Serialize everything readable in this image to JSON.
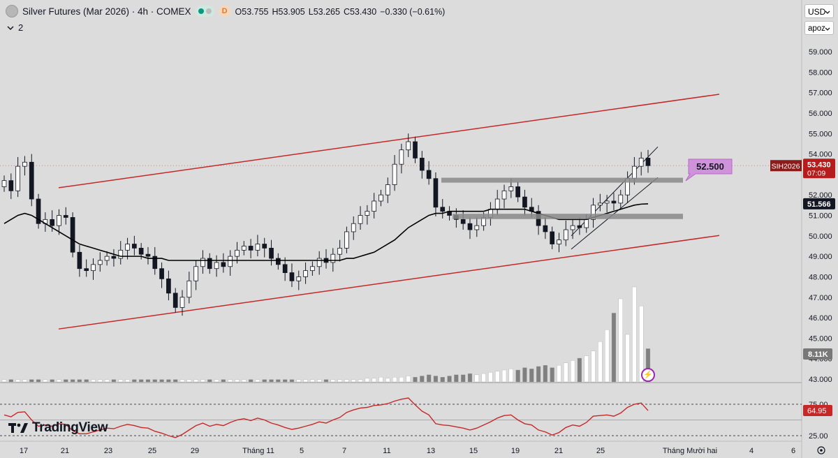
{
  "header": {
    "title": "Silver Futures (Mar 2026) · 4h · COMEX",
    "open": "O53.755",
    "high": "H53.905",
    "low": "L53.265",
    "close": "C53.430",
    "change": "−0.330 (−0.61%)",
    "delayed_badge": "D",
    "indicators_count": "2"
  },
  "toolbar": {
    "currency": "USD",
    "unit": "apoz"
  },
  "brand": {
    "logo_text": "TradingView"
  },
  "colors": {
    "up_candle": "#ffffff",
    "down_candle": "#131722",
    "channel": "#c62828",
    "ma": "#000000",
    "rsi": "#c62828",
    "zone": "#8a8a8a",
    "callout": "#ce93d8"
  },
  "chart_data": [
    {
      "type": "candlestick",
      "symbol_label": "SIH2026",
      "last_price_label": "53.430",
      "countdown": "07:09",
      "ma_label": "51.566",
      "volume_label": "8.11K",
      "callout_label": "52.500",
      "ylim": [
        42.6,
        60.0
      ],
      "y_ticks": [
        "59.000",
        "58.000",
        "57.000",
        "56.000",
        "55.000",
        "54.000",
        "53.000",
        "52.000",
        "51.000",
        "50.000",
        "49.000",
        "48.000",
        "47.000",
        "46.000",
        "45.000",
        "44.000",
        "43.000"
      ],
      "x_ticks": [
        "17",
        "21",
        "23",
        "25",
        "29",
        "Tháng 11",
        "5",
        "7",
        "11",
        "13",
        "15",
        "19",
        "21",
        "25",
        "Tháng Mười hai",
        "4",
        "6"
      ],
      "close_series": [
        52.7,
        52.2,
        53.4,
        53.6,
        51.8,
        50.6,
        50.8,
        50.5,
        51.0,
        50.9,
        49.2,
        48.4,
        48.3,
        48.6,
        48.8,
        49.0,
        48.9,
        49.3,
        49.6,
        49.4,
        49.1,
        49.0,
        48.4,
        47.9,
        47.2,
        46.5,
        47.0,
        47.8,
        48.5,
        48.9,
        48.4,
        48.7,
        48.5,
        49.0,
        49.3,
        49.5,
        49.3,
        49.6,
        49.4,
        48.9,
        48.6,
        48.2,
        47.8,
        48.0,
        48.3,
        48.5,
        48.9,
        48.7,
        49.1,
        49.4,
        50.2,
        50.6,
        51.0,
        51.2,
        51.7,
        52.0,
        52.5,
        53.5,
        54.2,
        54.6,
        53.8,
        53.2,
        52.8,
        51.4,
        51.2,
        51.0,
        50.8,
        50.6,
        50.3,
        50.5,
        50.9,
        51.3,
        51.8,
        52.2,
        52.4,
        51.9,
        51.4,
        51.2,
        50.5,
        50.2,
        49.6,
        49.8,
        50.3,
        50.5,
        50.4,
        50.8,
        51.5,
        51.6,
        51.7,
        51.6,
        52.0,
        52.8,
        53.4,
        53.8,
        53.43
      ],
      "ma_series": [
        50.6,
        50.8,
        51.0,
        51.1,
        51.0,
        50.8,
        50.6,
        50.4,
        50.2,
        50.0,
        49.8,
        49.6,
        49.5,
        49.4,
        49.3,
        49.2,
        49.1,
        49.0,
        49.0,
        49.0,
        49.0,
        48.9,
        48.9,
        48.9,
        48.8,
        48.8,
        48.8,
        48.8,
        48.8,
        48.8,
        48.8,
        48.8,
        48.8,
        48.8,
        48.8,
        48.8,
        48.8,
        48.8,
        48.8,
        48.8,
        48.8,
        48.8,
        48.8,
        48.8,
        48.8,
        48.8,
        48.8,
        48.8,
        48.8,
        48.8,
        48.9,
        48.9,
        49.0,
        49.1,
        49.2,
        49.4,
        49.6,
        49.8,
        50.1,
        50.4,
        50.6,
        50.8,
        51.0,
        51.1,
        51.1,
        51.2,
        51.2,
        51.2,
        51.2,
        51.2,
        51.2,
        51.3,
        51.3,
        51.3,
        51.3,
        51.3,
        51.3,
        51.2,
        51.1,
        51.0,
        50.9,
        50.8,
        50.8,
        50.8,
        50.8,
        50.8,
        50.9,
        51.0,
        51.1,
        51.2,
        51.3,
        51.4,
        51.5,
        51.55,
        51.566
      ],
      "volume_series": [
        0.1,
        0.1,
        0.1,
        0.1,
        0.1,
        0.1,
        0.1,
        0.1,
        0.1,
        0.1,
        0.1,
        0.1,
        0.1,
        0.1,
        0.1,
        0.1,
        0.1,
        0.1,
        0.1,
        0.1,
        0.1,
        0.1,
        0.1,
        0.1,
        0.1,
        0.1,
        0.1,
        0.1,
        0.1,
        0.1,
        0.1,
        0.1,
        0.1,
        0.1,
        0.1,
        0.1,
        0.1,
        0.1,
        0.1,
        0.1,
        0.1,
        0.1,
        0.1,
        0.1,
        0.1,
        0.1,
        0.1,
        0.1,
        0.1,
        0.1,
        0.1,
        0.1,
        0.1,
        0.15,
        0.15,
        0.2,
        0.15,
        0.2,
        0.2,
        0.25,
        0.2,
        0.25,
        0.3,
        0.25,
        0.2,
        0.25,
        0.3,
        0.3,
        0.35,
        0.3,
        0.35,
        0.4,
        0.45,
        0.5,
        0.55,
        0.5,
        0.6,
        0.55,
        0.65,
        0.7,
        0.6,
        0.7,
        0.8,
        0.9,
        1.0,
        1.1,
        1.3,
        1.7,
        2.2,
        2.9,
        3.5,
        2.0,
        4.0,
        3.2,
        1.4
      ],
      "rsi_series": [
        58,
        55,
        62,
        63,
        50,
        40,
        42,
        40,
        44,
        43,
        33,
        28,
        28,
        31,
        34,
        37,
        36,
        40,
        43,
        41,
        38,
        37,
        32,
        29,
        25,
        22,
        27,
        34,
        41,
        45,
        40,
        43,
        41,
        46,
        50,
        52,
        49,
        53,
        50,
        45,
        42,
        38,
        35,
        37,
        40,
        43,
        47,
        45,
        50,
        54,
        62,
        66,
        69,
        70,
        73,
        74,
        76,
        80,
        83,
        85,
        74,
        64,
        58,
        44,
        42,
        41,
        39,
        37,
        34,
        37,
        42,
        47,
        53,
        57,
        58,
        50,
        44,
        42,
        34,
        31,
        26,
        30,
        38,
        42,
        40,
        46,
        56,
        57,
        58,
        56,
        61,
        70,
        75,
        77,
        64.95
      ],
      "rsi_label": "64.95",
      "rsi_ticks": [
        "75.00",
        "25.00"
      ]
    }
  ]
}
